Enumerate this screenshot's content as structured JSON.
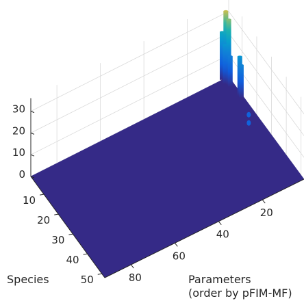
{
  "chart_data": {
    "type": "surface3d",
    "title": "",
    "zlabel": "",
    "xlabel": "Species",
    "ylabel_lines": [
      "Parameters",
      "(order by pFIM-MF)"
    ],
    "z_ticks": [
      "0",
      "10",
      "20",
      "30"
    ],
    "zlim": [
      0,
      35
    ],
    "species_ticks": [
      "10",
      "20",
      "30",
      "40",
      "50"
    ],
    "species_range": [
      1,
      52
    ],
    "parameter_ticks": [
      "20",
      "40",
      "60",
      "80"
    ],
    "parameter_range": [
      1,
      92
    ],
    "grid": true,
    "colormap": "parula",
    "baseline_value": 0,
    "peaks": [
      {
        "species": 2,
        "parameter": 3,
        "value": 32
      },
      {
        "species": 4,
        "parameter": 3,
        "value": 30
      },
      {
        "species": 1,
        "parameter": 4,
        "value": 22
      },
      {
        "species": 3,
        "parameter": 4,
        "value": 18
      },
      {
        "species": 5,
        "parameter": 3,
        "value": 14
      },
      {
        "species": 10,
        "parameter": 2,
        "value": 18
      },
      {
        "species": 11,
        "parameter": 2,
        "value": 15
      },
      {
        "species": 19,
        "parameter": 4,
        "value": 1.5
      },
      {
        "species": 22,
        "parameter": 6,
        "value": 1.5
      }
    ]
  }
}
